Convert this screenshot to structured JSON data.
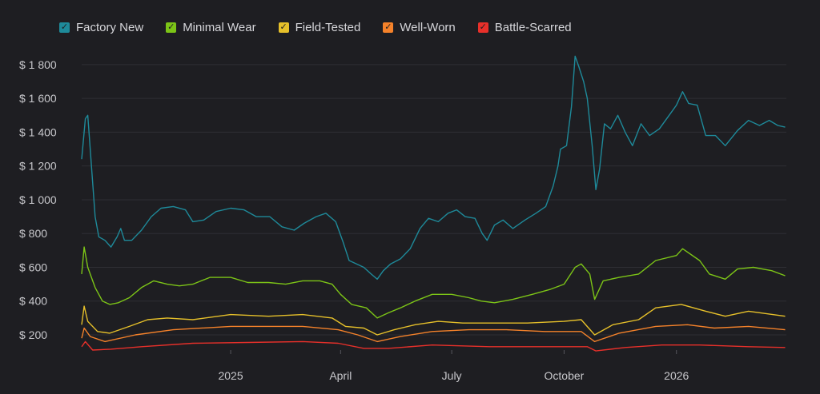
{
  "colors": {
    "background": "#1e1e22",
    "grid": "#2e2e34",
    "text": "#c8c8cc"
  },
  "chart_data": {
    "type": "line",
    "title": "",
    "xlabel": "",
    "ylabel": "",
    "legend_placement": "top-left",
    "grid": true,
    "ylim": [
      110,
      1880
    ],
    "y_ticks": [
      200,
      400,
      600,
      800,
      1000,
      1200,
      1400,
      1600,
      1800
    ],
    "y_tick_labels": [
      "$ 200",
      "$ 400",
      "$ 600",
      "$ 800",
      "$ 1 000",
      "$ 1 200",
      "$ 1 400",
      "$ 1 600",
      "$ 1 800"
    ],
    "x_range": [
      "2024-09-01",
      "2026-04-01"
    ],
    "x_ticks": [
      "2025-01-01",
      "2025-04-01",
      "2025-07-01",
      "2025-10-01",
      "2026-01-01"
    ],
    "x_tick_labels": [
      "2025",
      "April",
      "July",
      "October",
      "2026"
    ],
    "series": [
      {
        "name": "Factory New",
        "color": "#1e8a9a",
        "points": [
          [
            "2024-09-01",
            1240
          ],
          [
            "2024-09-04",
            1480
          ],
          [
            "2024-09-06",
            1500
          ],
          [
            "2024-09-09",
            1200
          ],
          [
            "2024-09-12",
            900
          ],
          [
            "2024-09-15",
            780
          ],
          [
            "2024-09-20",
            760
          ],
          [
            "2024-09-25",
            720
          ],
          [
            "2024-09-30",
            780
          ],
          [
            "2024-10-03",
            830
          ],
          [
            "2024-10-06",
            760
          ],
          [
            "2024-10-12",
            760
          ],
          [
            "2024-10-20",
            820
          ],
          [
            "2024-10-28",
            900
          ],
          [
            "2024-11-05",
            950
          ],
          [
            "2024-11-15",
            960
          ],
          [
            "2024-11-25",
            940
          ],
          [
            "2024-12-01",
            870
          ],
          [
            "2024-12-10",
            880
          ],
          [
            "2024-12-20",
            930
          ],
          [
            "2025-01-01",
            950
          ],
          [
            "2025-01-12",
            940
          ],
          [
            "2025-01-22",
            900
          ],
          [
            "2025-02-02",
            900
          ],
          [
            "2025-02-12",
            840
          ],
          [
            "2025-02-22",
            820
          ],
          [
            "2025-03-02",
            860
          ],
          [
            "2025-03-12",
            900
          ],
          [
            "2025-03-20",
            920
          ],
          [
            "2025-03-28",
            870
          ],
          [
            "2025-04-03",
            750
          ],
          [
            "2025-04-08",
            640
          ],
          [
            "2025-04-14",
            620
          ],
          [
            "2025-04-20",
            600
          ],
          [
            "2025-04-26",
            560
          ],
          [
            "2025-05-01",
            530
          ],
          [
            "2025-05-06",
            580
          ],
          [
            "2025-05-12",
            620
          ],
          [
            "2025-05-20",
            650
          ],
          [
            "2025-05-28",
            710
          ],
          [
            "2025-06-05",
            830
          ],
          [
            "2025-06-12",
            890
          ],
          [
            "2025-06-20",
            870
          ],
          [
            "2025-06-28",
            920
          ],
          [
            "2025-07-05",
            940
          ],
          [
            "2025-07-12",
            900
          ],
          [
            "2025-07-20",
            890
          ],
          [
            "2025-07-26",
            800
          ],
          [
            "2025-07-30",
            760
          ],
          [
            "2025-08-05",
            850
          ],
          [
            "2025-08-12",
            880
          ],
          [
            "2025-08-20",
            830
          ],
          [
            "2025-08-30",
            880
          ],
          [
            "2025-09-08",
            920
          ],
          [
            "2025-09-16",
            960
          ],
          [
            "2025-09-22",
            1080
          ],
          [
            "2025-09-26",
            1200
          ],
          [
            "2025-09-28",
            1300
          ],
          [
            "2025-10-03",
            1320
          ],
          [
            "2025-10-07",
            1550
          ],
          [
            "2025-10-10",
            1850
          ],
          [
            "2025-10-13",
            1790
          ],
          [
            "2025-10-17",
            1700
          ],
          [
            "2025-10-20",
            1600
          ],
          [
            "2025-10-24",
            1320
          ],
          [
            "2025-10-27",
            1060
          ],
          [
            "2025-10-30",
            1180
          ],
          [
            "2025-11-03",
            1450
          ],
          [
            "2025-11-08",
            1420
          ],
          [
            "2025-11-14",
            1500
          ],
          [
            "2025-11-20",
            1400
          ],
          [
            "2025-11-26",
            1320
          ],
          [
            "2025-12-03",
            1450
          ],
          [
            "2025-12-10",
            1380
          ],
          [
            "2025-12-18",
            1420
          ],
          [
            "2025-12-26",
            1500
          ],
          [
            "2026-01-01",
            1560
          ],
          [
            "2026-01-06",
            1640
          ],
          [
            "2026-01-11",
            1570
          ],
          [
            "2026-01-18",
            1560
          ],
          [
            "2026-01-25",
            1380
          ],
          [
            "2026-02-02",
            1380
          ],
          [
            "2026-02-10",
            1320
          ],
          [
            "2026-02-20",
            1410
          ],
          [
            "2026-03-01",
            1470
          ],
          [
            "2026-03-10",
            1440
          ],
          [
            "2026-03-18",
            1470
          ],
          [
            "2026-03-25",
            1440
          ],
          [
            "2026-03-31",
            1430
          ]
        ]
      },
      {
        "name": "Minimal Wear",
        "color": "#7cc417",
        "points": [
          [
            "2024-09-01",
            560
          ],
          [
            "2024-09-03",
            720
          ],
          [
            "2024-09-06",
            600
          ],
          [
            "2024-09-12",
            480
          ],
          [
            "2024-09-18",
            400
          ],
          [
            "2024-09-24",
            380
          ],
          [
            "2024-10-01",
            390
          ],
          [
            "2024-10-10",
            420
          ],
          [
            "2024-10-20",
            480
          ],
          [
            "2024-10-30",
            520
          ],
          [
            "2024-11-10",
            500
          ],
          [
            "2024-11-20",
            490
          ],
          [
            "2024-12-01",
            500
          ],
          [
            "2024-12-15",
            540
          ],
          [
            "2025-01-01",
            540
          ],
          [
            "2025-01-15",
            510
          ],
          [
            "2025-02-01",
            510
          ],
          [
            "2025-02-15",
            500
          ],
          [
            "2025-03-01",
            520
          ],
          [
            "2025-03-15",
            520
          ],
          [
            "2025-03-25",
            500
          ],
          [
            "2025-04-01",
            440
          ],
          [
            "2025-04-10",
            380
          ],
          [
            "2025-04-22",
            360
          ],
          [
            "2025-05-01",
            300
          ],
          [
            "2025-05-10",
            330
          ],
          [
            "2025-05-20",
            360
          ],
          [
            "2025-06-01",
            400
          ],
          [
            "2025-06-15",
            440
          ],
          [
            "2025-07-01",
            440
          ],
          [
            "2025-07-15",
            420
          ],
          [
            "2025-07-25",
            400
          ],
          [
            "2025-08-05",
            390
          ],
          [
            "2025-08-20",
            410
          ],
          [
            "2025-09-05",
            440
          ],
          [
            "2025-09-20",
            470
          ],
          [
            "2025-10-01",
            500
          ],
          [
            "2025-10-10",
            600
          ],
          [
            "2025-10-15",
            620
          ],
          [
            "2025-10-22",
            560
          ],
          [
            "2025-10-26",
            410
          ],
          [
            "2025-11-02",
            520
          ],
          [
            "2025-11-15",
            540
          ],
          [
            "2025-12-01",
            560
          ],
          [
            "2025-12-15",
            640
          ],
          [
            "2026-01-01",
            670
          ],
          [
            "2026-01-06",
            710
          ],
          [
            "2026-01-20",
            640
          ],
          [
            "2026-01-28",
            560
          ],
          [
            "2026-02-10",
            530
          ],
          [
            "2026-02-20",
            590
          ],
          [
            "2026-03-05",
            600
          ],
          [
            "2026-03-20",
            580
          ],
          [
            "2026-03-31",
            550
          ]
        ]
      },
      {
        "name": "Field-Tested",
        "color": "#e6c02a",
        "points": [
          [
            "2024-09-01",
            260
          ],
          [
            "2024-09-03",
            370
          ],
          [
            "2024-09-06",
            280
          ],
          [
            "2024-09-14",
            220
          ],
          [
            "2024-09-24",
            210
          ],
          [
            "2024-10-10",
            250
          ],
          [
            "2024-10-25",
            290
          ],
          [
            "2024-11-10",
            300
          ],
          [
            "2024-12-01",
            290
          ],
          [
            "2025-01-01",
            320
          ],
          [
            "2025-02-01",
            310
          ],
          [
            "2025-03-01",
            320
          ],
          [
            "2025-03-25",
            300
          ],
          [
            "2025-04-05",
            250
          ],
          [
            "2025-04-20",
            240
          ],
          [
            "2025-05-01",
            200
          ],
          [
            "2025-05-15",
            230
          ],
          [
            "2025-06-01",
            260
          ],
          [
            "2025-06-20",
            280
          ],
          [
            "2025-07-10",
            270
          ],
          [
            "2025-08-01",
            270
          ],
          [
            "2025-09-01",
            270
          ],
          [
            "2025-10-01",
            280
          ],
          [
            "2025-10-15",
            290
          ],
          [
            "2025-10-26",
            200
          ],
          [
            "2025-11-10",
            260
          ],
          [
            "2025-12-01",
            290
          ],
          [
            "2025-12-15",
            360
          ],
          [
            "2026-01-05",
            380
          ],
          [
            "2026-01-25",
            340
          ],
          [
            "2026-02-10",
            310
          ],
          [
            "2026-03-01",
            340
          ],
          [
            "2026-03-31",
            310
          ]
        ]
      },
      {
        "name": "Well-Worn",
        "color": "#f5822a",
        "points": [
          [
            "2024-09-01",
            180
          ],
          [
            "2024-09-03",
            240
          ],
          [
            "2024-09-08",
            190
          ],
          [
            "2024-09-20",
            160
          ],
          [
            "2024-10-15",
            200
          ],
          [
            "2024-11-15",
            230
          ],
          [
            "2025-01-01",
            250
          ],
          [
            "2025-02-01",
            250
          ],
          [
            "2025-03-01",
            250
          ],
          [
            "2025-03-30",
            230
          ],
          [
            "2025-04-15",
            200
          ],
          [
            "2025-05-01",
            160
          ],
          [
            "2025-05-20",
            190
          ],
          [
            "2025-06-15",
            220
          ],
          [
            "2025-07-15",
            230
          ],
          [
            "2025-08-15",
            230
          ],
          [
            "2025-09-15",
            220
          ],
          [
            "2025-10-15",
            220
          ],
          [
            "2025-10-26",
            160
          ],
          [
            "2025-11-15",
            210
          ],
          [
            "2025-12-15",
            250
          ],
          [
            "2026-01-10",
            260
          ],
          [
            "2026-02-01",
            240
          ],
          [
            "2026-03-01",
            250
          ],
          [
            "2026-03-31",
            230
          ]
        ]
      },
      {
        "name": "Battle-Scarred",
        "color": "#e8302a",
        "points": [
          [
            "2024-09-01",
            130
          ],
          [
            "2024-09-04",
            160
          ],
          [
            "2024-09-10",
            110
          ],
          [
            "2024-09-25",
            115
          ],
          [
            "2024-10-20",
            130
          ],
          [
            "2024-12-01",
            150
          ],
          [
            "2025-01-15",
            155
          ],
          [
            "2025-03-01",
            160
          ],
          [
            "2025-03-30",
            150
          ],
          [
            "2025-04-20",
            120
          ],
          [
            "2025-05-10",
            120
          ],
          [
            "2025-06-15",
            140
          ],
          [
            "2025-08-01",
            130
          ],
          [
            "2025-09-15",
            130
          ],
          [
            "2025-10-20",
            130
          ],
          [
            "2025-10-27",
            105
          ],
          [
            "2025-11-20",
            125
          ],
          [
            "2025-12-20",
            140
          ],
          [
            "2026-01-20",
            140
          ],
          [
            "2026-03-01",
            130
          ],
          [
            "2026-03-31",
            125
          ]
        ]
      }
    ]
  }
}
